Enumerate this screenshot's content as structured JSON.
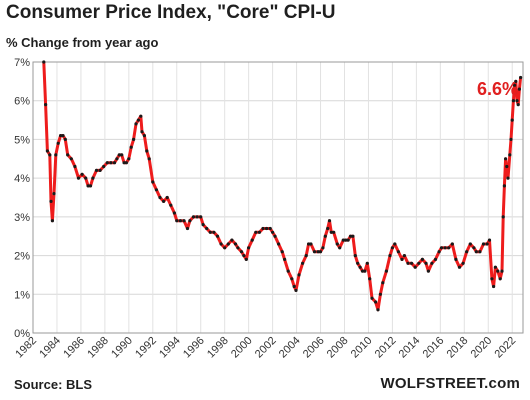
{
  "chart_data": {
    "type": "line",
    "title": "Consumer  Price Index, \"Core\" CPI-U",
    "subtitle": "% Change from year ago",
    "ylabel": "",
    "xlabel": "",
    "ylim": [
      0,
      7
    ],
    "xlim": [
      1982,
      2022.9
    ],
    "yticks": [
      "0%",
      "1%",
      "2%",
      "3%",
      "4%",
      "5%",
      "6%",
      "7%"
    ],
    "xticks": [
      "1982",
      "1984",
      "1986",
      "1988",
      "1990",
      "1992",
      "1994",
      "1996",
      "1998",
      "2000",
      "2002",
      "2004",
      "2006",
      "2008",
      "2010",
      "2012",
      "2014",
      "2016",
      "2018",
      "2020",
      "2022"
    ],
    "grid": true,
    "line_color": "#ee1c1c",
    "marker_color": "#1a1a1a",
    "callout": "6.6%",
    "series": [
      {
        "points": [
          [
            1982.9,
            7.0
          ],
          [
            1983.05,
            5.9
          ],
          [
            1983.2,
            4.7
          ],
          [
            1983.4,
            4.6
          ],
          [
            1983.5,
            3.4
          ],
          [
            1983.62,
            2.9
          ],
          [
            1983.75,
            3.6
          ],
          [
            1983.9,
            4.6
          ],
          [
            1984.1,
            4.9
          ],
          [
            1984.3,
            5.1
          ],
          [
            1984.5,
            5.1
          ],
          [
            1984.7,
            5.0
          ],
          [
            1984.9,
            4.6
          ],
          [
            1985.2,
            4.5
          ],
          [
            1985.5,
            4.3
          ],
          [
            1985.8,
            4.0
          ],
          [
            1986.1,
            4.1
          ],
          [
            1986.4,
            4.0
          ],
          [
            1986.6,
            3.8
          ],
          [
            1986.8,
            3.8
          ],
          [
            1987.0,
            4.0
          ],
          [
            1987.3,
            4.2
          ],
          [
            1987.6,
            4.2
          ],
          [
            1987.9,
            4.3
          ],
          [
            1988.2,
            4.4
          ],
          [
            1988.5,
            4.4
          ],
          [
            1988.8,
            4.4
          ],
          [
            1989.0,
            4.5
          ],
          [
            1989.2,
            4.6
          ],
          [
            1989.4,
            4.6
          ],
          [
            1989.6,
            4.4
          ],
          [
            1989.8,
            4.4
          ],
          [
            1990.0,
            4.5
          ],
          [
            1990.2,
            4.8
          ],
          [
            1990.4,
            5.0
          ],
          [
            1990.6,
            5.4
          ],
          [
            1990.8,
            5.5
          ],
          [
            1991.0,
            5.6
          ],
          [
            1991.1,
            5.2
          ],
          [
            1991.3,
            5.1
          ],
          [
            1991.5,
            4.7
          ],
          [
            1991.7,
            4.5
          ],
          [
            1992.0,
            3.9
          ],
          [
            1992.3,
            3.7
          ],
          [
            1992.6,
            3.5
          ],
          [
            1992.9,
            3.4
          ],
          [
            1993.2,
            3.5
          ],
          [
            1993.5,
            3.3
          ],
          [
            1993.8,
            3.1
          ],
          [
            1994.0,
            2.9
          ],
          [
            1994.3,
            2.9
          ],
          [
            1994.6,
            2.9
          ],
          [
            1994.9,
            2.7
          ],
          [
            1995.1,
            2.9
          ],
          [
            1995.4,
            3.0
          ],
          [
            1995.7,
            3.0
          ],
          [
            1996.0,
            3.0
          ],
          [
            1996.2,
            2.8
          ],
          [
            1996.5,
            2.7
          ],
          [
            1996.8,
            2.6
          ],
          [
            1997.1,
            2.6
          ],
          [
            1997.4,
            2.5
          ],
          [
            1997.7,
            2.3
          ],
          [
            1998.0,
            2.2
          ],
          [
            1998.3,
            2.3
          ],
          [
            1998.6,
            2.4
          ],
          [
            1998.9,
            2.3
          ],
          [
            1999.1,
            2.2
          ],
          [
            1999.4,
            2.1
          ],
          [
            1999.6,
            2.0
          ],
          [
            1999.8,
            1.9
          ],
          [
            2000.0,
            2.2
          ],
          [
            2000.3,
            2.4
          ],
          [
            2000.6,
            2.6
          ],
          [
            2000.9,
            2.6
          ],
          [
            2001.2,
            2.7
          ],
          [
            2001.5,
            2.7
          ],
          [
            2001.8,
            2.7
          ],
          [
            2002.0,
            2.6
          ],
          [
            2002.2,
            2.5
          ],
          [
            2002.5,
            2.3
          ],
          [
            2002.8,
            2.1
          ],
          [
            2003.0,
            1.9
          ],
          [
            2003.3,
            1.6
          ],
          [
            2003.6,
            1.4
          ],
          [
            2003.8,
            1.2
          ],
          [
            2003.95,
            1.1
          ],
          [
            2004.2,
            1.5
          ],
          [
            2004.5,
            1.8
          ],
          [
            2004.8,
            2.0
          ],
          [
            2005.0,
            2.3
          ],
          [
            2005.2,
            2.3
          ],
          [
            2005.5,
            2.1
          ],
          [
            2005.8,
            2.1
          ],
          [
            2006.0,
            2.1
          ],
          [
            2006.2,
            2.2
          ],
          [
            2006.4,
            2.5
          ],
          [
            2006.6,
            2.7
          ],
          [
            2006.75,
            2.9
          ],
          [
            2006.9,
            2.6
          ],
          [
            2007.1,
            2.6
          ],
          [
            2007.4,
            2.3
          ],
          [
            2007.6,
            2.2
          ],
          [
            2007.9,
            2.4
          ],
          [
            2008.1,
            2.4
          ],
          [
            2008.3,
            2.4
          ],
          [
            2008.5,
            2.5
          ],
          [
            2008.7,
            2.5
          ],
          [
            2008.9,
            2.0
          ],
          [
            2009.1,
            1.8
          ],
          [
            2009.3,
            1.7
          ],
          [
            2009.5,
            1.6
          ],
          [
            2009.7,
            1.6
          ],
          [
            2009.9,
            1.8
          ],
          [
            2010.1,
            1.4
          ],
          [
            2010.3,
            0.9
          ],
          [
            2010.6,
            0.8
          ],
          [
            2010.8,
            0.6
          ],
          [
            2011.0,
            1.0
          ],
          [
            2011.2,
            1.3
          ],
          [
            2011.5,
            1.6
          ],
          [
            2011.8,
            2.0
          ],
          [
            2012.0,
            2.2
          ],
          [
            2012.2,
            2.3
          ],
          [
            2012.5,
            2.1
          ],
          [
            2012.8,
            1.9
          ],
          [
            2013.0,
            2.0
          ],
          [
            2013.3,
            1.8
          ],
          [
            2013.6,
            1.8
          ],
          [
            2013.9,
            1.7
          ],
          [
            2014.2,
            1.8
          ],
          [
            2014.5,
            1.9
          ],
          [
            2014.8,
            1.8
          ],
          [
            2015.0,
            1.6
          ],
          [
            2015.3,
            1.8
          ],
          [
            2015.6,
            1.9
          ],
          [
            2015.9,
            2.1
          ],
          [
            2016.1,
            2.2
          ],
          [
            2016.4,
            2.2
          ],
          [
            2016.7,
            2.2
          ],
          [
            2017.0,
            2.3
          ],
          [
            2017.3,
            1.9
          ],
          [
            2017.6,
            1.7
          ],
          [
            2017.9,
            1.8
          ],
          [
            2018.2,
            2.1
          ],
          [
            2018.5,
            2.3
          ],
          [
            2018.8,
            2.2
          ],
          [
            2019.0,
            2.1
          ],
          [
            2019.3,
            2.1
          ],
          [
            2019.6,
            2.3
          ],
          [
            2019.9,
            2.3
          ],
          [
            2020.1,
            2.4
          ],
          [
            2020.3,
            1.4
          ],
          [
            2020.45,
            1.2
          ],
          [
            2020.6,
            1.7
          ],
          [
            2020.8,
            1.6
          ],
          [
            2021.0,
            1.4
          ],
          [
            2021.15,
            1.6
          ],
          [
            2021.25,
            3.0
          ],
          [
            2021.35,
            3.8
          ],
          [
            2021.45,
            4.5
          ],
          [
            2021.55,
            4.3
          ],
          [
            2021.65,
            4.0
          ],
          [
            2021.8,
            4.6
          ],
          [
            2021.9,
            5.0
          ],
          [
            2022.0,
            5.5
          ],
          [
            2022.1,
            6.0
          ],
          [
            2022.2,
            6.4
          ],
          [
            2022.3,
            6.5
          ],
          [
            2022.4,
            6.0
          ],
          [
            2022.5,
            5.9
          ],
          [
            2022.6,
            6.3
          ],
          [
            2022.7,
            6.6
          ]
        ]
      }
    ]
  },
  "footer": {
    "source": "Source: BLS",
    "brand": "WOLFSTREET.com"
  }
}
